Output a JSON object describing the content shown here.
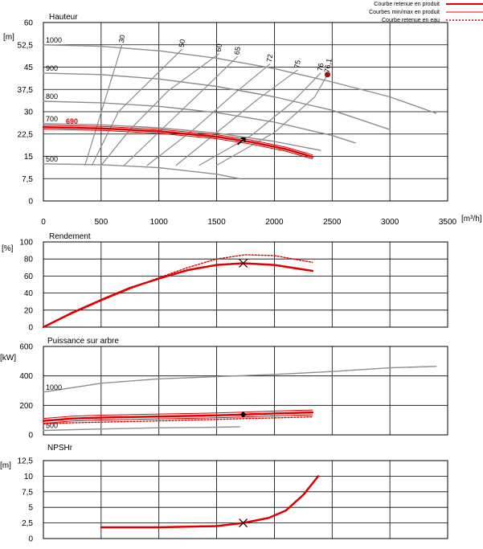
{
  "legend": {
    "items": [
      {
        "label": "Courbe retenue en produit",
        "style": "solid-thick",
        "color": "#e00000"
      },
      {
        "label": "Courbes min/max en produit",
        "style": "solid-thin",
        "color": "#e00000"
      },
      {
        "label": "Courbe retenue en eau",
        "style": "dotted",
        "color": "#e00000"
      }
    ]
  },
  "colors": {
    "grey": "#8c8c8c",
    "red": "#e00000",
    "dark_red": "#a01010"
  },
  "chart_data": [
    {
      "type": "line",
      "title": "Hauteur",
      "ylabel": "[m]",
      "xlabel": "[m³/h]",
      "xlim": [
        0,
        3500
      ],
      "ylim": [
        0,
        60
      ],
      "xticks": [
        "0",
        "500",
        "1000",
        "1500",
        "2000",
        "2500",
        "3000",
        "3500"
      ],
      "yticks": [
        "0",
        "7,5",
        "15",
        "22,5",
        "30",
        "37,5",
        "45",
        "52,5",
        "60"
      ],
      "grid": true,
      "impeller_curves": [
        {
          "name": "1000",
          "x": [
            0,
            500,
            1000,
            1500,
            2000,
            2500,
            3000,
            3400
          ],
          "y": [
            52.5,
            52,
            50.5,
            48,
            44.5,
            40,
            35,
            29.5
          ]
        },
        {
          "name": "900",
          "x": [
            0,
            500,
            1000,
            1500,
            2000,
            2500,
            3000
          ],
          "y": [
            43,
            42.5,
            41,
            38.5,
            35,
            30.5,
            24
          ]
        },
        {
          "name": "800",
          "x": [
            0,
            500,
            1000,
            1500,
            2000,
            2500,
            2700
          ],
          "y": [
            33.5,
            33,
            31.8,
            29.7,
            26.5,
            22,
            19.5
          ]
        },
        {
          "name": "700",
          "x": [
            0,
            500,
            1000,
            1500,
            2000,
            2400
          ],
          "y": [
            26,
            25.6,
            24.6,
            22.8,
            20,
            17
          ]
        },
        {
          "name": "500",
          "x": [
            0,
            500,
            1000,
            1500,
            1700
          ],
          "y": [
            12.5,
            12.2,
            11.2,
            9,
            7.5
          ]
        }
      ],
      "efficiency_lines": [
        {
          "label": "30",
          "x": [
            680,
            360
          ],
          "y": [
            52.5,
            12
          ]
        },
        {
          "label": "50",
          "x": [
            1200,
            650,
            420
          ],
          "y": [
            51,
            30,
            12
          ]
        },
        {
          "label": "60",
          "x": [
            1520,
            1080,
            750,
            500
          ],
          "y": [
            49.5,
            37,
            24,
            12
          ]
        },
        {
          "label": "65",
          "x": [
            1680,
            1400,
            1050,
            700
          ],
          "y": [
            48.5,
            38,
            25,
            12
          ]
        },
        {
          "label": "72",
          "x": [
            1960,
            1650,
            1300,
            900
          ],
          "y": [
            46,
            36,
            24,
            12
          ]
        },
        {
          "label": "75",
          "x": [
            2200,
            1850,
            1500,
            1150
          ],
          "y": [
            44,
            34,
            23,
            12
          ]
        },
        {
          "label": "76",
          "x": [
            2400,
            2150,
            1800,
            1350
          ],
          "y": [
            43,
            33,
            22,
            12
          ]
        },
        {
          "label": "76,1",
          "x": [
            2460,
            2350,
            2000,
            1500
          ],
          "y": [
            42.5,
            35,
            23,
            12
          ]
        }
      ],
      "selected_curve": {
        "name": "690",
        "x": [
          0,
          500,
          1000,
          1500,
          1800,
          2100,
          2330
        ],
        "y": [
          24.8,
          24.4,
          23.4,
          21.6,
          19.8,
          17.4,
          14.8
        ]
      },
      "bep": {
        "x": 2460,
        "y": 42.5
      },
      "operating_point": {
        "x": 1730,
        "y": 20.3
      }
    },
    {
      "type": "line",
      "title": "Rendement",
      "ylabel": "[%]",
      "xlim": [
        0,
        3500
      ],
      "ylim": [
        0,
        100
      ],
      "yticks": [
        "0",
        "20",
        "40",
        "60",
        "80",
        "100"
      ],
      "grid": true,
      "series": [
        {
          "style": "solid-thick",
          "x": [
            0,
            250,
            500,
            750,
            1000,
            1250,
            1500,
            1730,
            2000,
            2330
          ],
          "y": [
            0,
            17,
            32,
            46,
            57,
            67,
            73,
            75,
            73,
            66
          ]
        },
        {
          "style": "dotted",
          "x": [
            0,
            250,
            500,
            750,
            1000,
            1250,
            1500,
            1750,
            2000,
            2330
          ],
          "y": [
            0,
            16,
            31,
            45,
            58,
            70,
            80,
            85,
            84,
            76
          ]
        }
      ],
      "operating_point": {
        "x": 1730,
        "y": 75
      }
    },
    {
      "type": "line",
      "title": "Puissance sur arbre",
      "ylabel": "[kW]",
      "xlim": [
        0,
        3500
      ],
      "ylim": [
        0,
        600
      ],
      "yticks": [
        "0",
        "200",
        "400",
        "600"
      ],
      "grid": true,
      "impeller_curves": [
        {
          "name": "1000",
          "x": [
            0,
            500,
            1000,
            1500,
            2000,
            2500,
            3000,
            3400
          ],
          "y": [
            290,
            350,
            380,
            395,
            410,
            430,
            455,
            465
          ]
        },
        {
          "name": "500",
          "x": [
            0,
            500,
            1000,
            1500,
            1700
          ],
          "y": [
            30,
            40,
            48,
            52,
            55
          ]
        }
      ],
      "series": [
        {
          "style": "solid-thick",
          "x": [
            0,
            250,
            500,
            1000,
            1500,
            1730,
            2000,
            2330
          ],
          "y": [
            95,
            110,
            117,
            125,
            132,
            138,
            145,
            152
          ]
        },
        {
          "style": "dotted",
          "x": [
            0,
            250,
            500,
            1000,
            1500,
            1730,
            2000,
            2330
          ],
          "y": [
            75,
            82,
            86,
            95,
            105,
            110,
            115,
            122
          ]
        }
      ],
      "operating_point": {
        "x": 1730,
        "y": 138
      }
    },
    {
      "type": "line",
      "title": "NPSHr",
      "ylabel": "[m]",
      "xlim": [
        0,
        3500
      ],
      "ylim": [
        0,
        12.5
      ],
      "yticks": [
        "0",
        "2,5",
        "5",
        "7,5",
        "10",
        "12,5"
      ],
      "grid": true,
      "series": [
        {
          "style": "solid-thick",
          "x": [
            500,
            1000,
            1500,
            1730,
            1950,
            2100,
            2250,
            2380
          ],
          "y": [
            1.8,
            1.8,
            2,
            2.5,
            3.3,
            4.5,
            7,
            10
          ]
        }
      ],
      "operating_point": {
        "x": 1730,
        "y": 2.5
      }
    }
  ]
}
